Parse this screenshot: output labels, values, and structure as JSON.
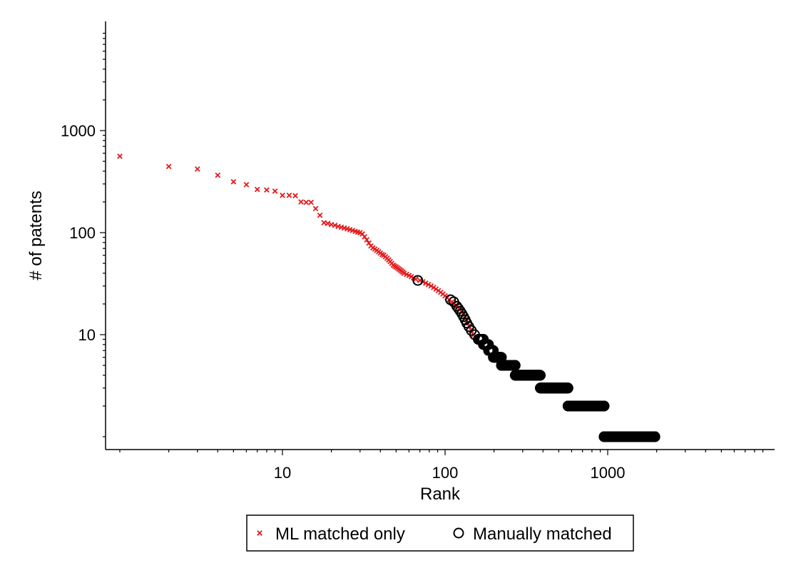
{
  "chart_data": {
    "type": "scatter",
    "xlabel": "Rank",
    "ylabel": "# of patents",
    "xscale": "log",
    "yscale": "log",
    "xlim": [
      0.85,
      9000
    ],
    "ylim": [
      0.8,
      10000
    ],
    "x_ticks": [
      10,
      100,
      1000
    ],
    "x_tick_labels": [
      "10",
      "100",
      "1000"
    ],
    "y_ticks": [
      10,
      100,
      1000
    ],
    "y_tick_labels": [
      "10",
      "100",
      "1000"
    ],
    "grid": false,
    "legend_position": "bottom-center",
    "series": [
      {
        "name": "ML matched only",
        "marker": "x",
        "color": "#e41a1c",
        "points": [
          [
            1,
            560
          ],
          [
            2,
            445
          ],
          [
            3,
            420
          ],
          [
            4,
            365
          ],
          [
            5,
            315
          ],
          [
            6,
            295
          ],
          [
            7,
            265
          ],
          [
            8,
            262
          ],
          [
            9,
            255
          ],
          [
            10,
            232
          ],
          [
            11,
            232
          ],
          [
            12,
            230
          ],
          [
            13,
            200
          ],
          [
            14,
            198
          ],
          [
            15,
            198
          ],
          [
            16,
            172
          ],
          [
            17,
            148
          ],
          [
            18,
            125
          ],
          [
            19,
            123
          ],
          [
            20,
            120
          ],
          [
            21,
            118
          ],
          [
            22,
            115
          ],
          [
            23,
            113
          ],
          [
            24,
            111
          ],
          [
            25,
            109
          ],
          [
            26,
            107
          ],
          [
            27,
            105
          ],
          [
            28,
            103
          ],
          [
            29,
            101
          ],
          [
            30,
            100
          ],
          [
            31,
            97
          ],
          [
            32,
            91
          ],
          [
            33,
            85
          ],
          [
            34,
            79
          ],
          [
            35,
            74
          ],
          [
            36,
            71
          ],
          [
            37,
            69
          ],
          [
            38,
            67
          ],
          [
            39,
            65
          ],
          [
            40,
            63
          ],
          [
            41,
            61
          ],
          [
            42,
            60
          ],
          [
            43,
            58
          ],
          [
            44,
            56
          ],
          [
            45,
            54
          ],
          [
            46,
            52
          ],
          [
            47,
            50
          ],
          [
            48,
            48
          ],
          [
            49,
            47
          ],
          [
            50,
            46
          ],
          [
            51,
            45
          ],
          [
            52,
            44
          ],
          [
            53,
            43
          ],
          [
            54,
            42
          ],
          [
            55,
            41
          ],
          [
            56,
            40
          ],
          [
            58,
            39
          ],
          [
            60,
            38
          ],
          [
            62,
            37
          ],
          [
            64,
            36
          ],
          [
            66,
            35
          ],
          [
            70,
            34
          ],
          [
            73,
            33
          ],
          [
            76,
            32
          ],
          [
            79,
            31
          ],
          [
            82,
            30
          ],
          [
            85,
            29
          ],
          [
            88,
            28
          ],
          [
            91,
            27
          ],
          [
            94,
            26
          ],
          [
            97,
            25
          ],
          [
            100,
            24
          ],
          [
            103,
            23
          ],
          [
            106,
            22
          ],
          [
            110,
            21
          ],
          [
            114,
            20
          ],
          [
            118,
            19
          ],
          [
            122,
            18
          ],
          [
            126,
            17
          ],
          [
            129,
            16
          ],
          [
            132,
            15
          ],
          [
            135,
            14
          ],
          [
            138,
            13
          ],
          [
            141,
            12
          ],
          [
            145,
            11
          ],
          [
            150,
            10
          ]
        ]
      },
      {
        "name": "Manually matched",
        "marker": "o",
        "color": "#000000",
        "points": [
          [
            68,
            34
          ],
          [
            108,
            22
          ],
          [
            113,
            21
          ],
          [
            118,
            19
          ],
          [
            121,
            18
          ],
          [
            124,
            17
          ],
          [
            127,
            16
          ],
          [
            130,
            15
          ],
          [
            133,
            14
          ],
          [
            136,
            13
          ],
          [
            140,
            12
          ],
          [
            145,
            11
          ],
          [
            152,
            10
          ]
        ],
        "ranges": [
          {
            "y": 9,
            "x_from": 160,
            "x_to": 172
          },
          {
            "y": 8,
            "x_from": 172,
            "x_to": 185
          },
          {
            "y": 7,
            "x_from": 185,
            "x_to": 198
          },
          {
            "y": 6,
            "x_from": 198,
            "x_to": 222
          },
          {
            "y": 5,
            "x_from": 222,
            "x_to": 270
          },
          {
            "y": 4,
            "x_from": 270,
            "x_to": 385
          },
          {
            "y": 3,
            "x_from": 385,
            "x_to": 570
          },
          {
            "y": 2,
            "x_from": 570,
            "x_to": 950
          },
          {
            "y": 1,
            "x_from": 950,
            "x_to": 1950
          }
        ]
      }
    ]
  }
}
